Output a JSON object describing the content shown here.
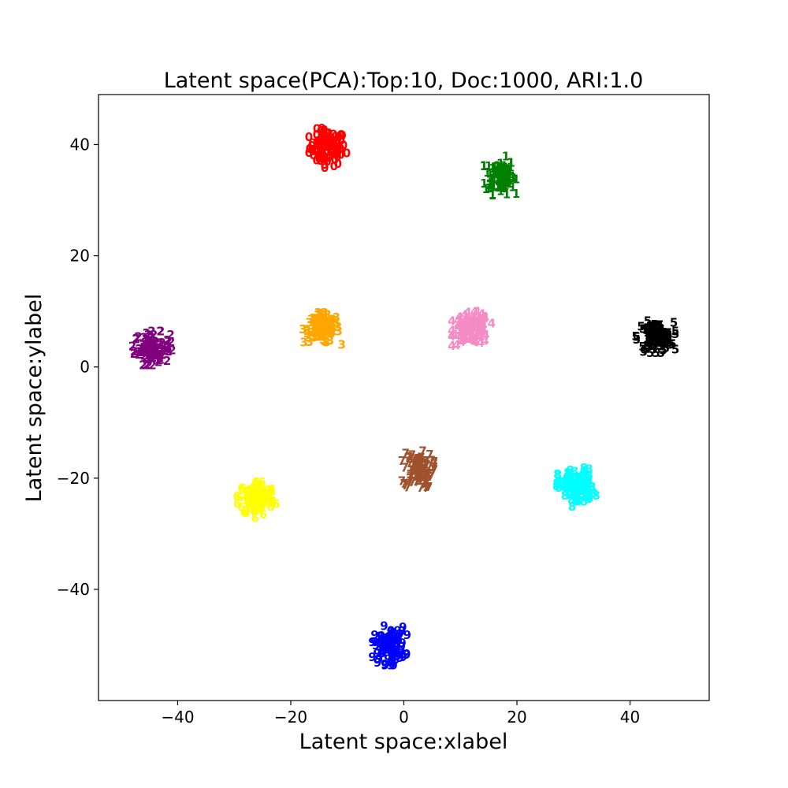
{
  "chart_data": {
    "type": "scatter",
    "title": "Latent space(PCA):Top:10, Doc:1000, ARI:1.0",
    "xlabel": "Latent space:xlabel",
    "ylabel": "Latent space:ylabel",
    "xlim": [
      -54,
      54
    ],
    "ylim": [
      -60,
      49
    ],
    "xticks": [
      -40,
      -20,
      0,
      20,
      40
    ],
    "yticks": [
      -40,
      -20,
      0,
      20,
      40
    ],
    "xtick_labels": [
      "−40",
      "−20",
      "0",
      "20",
      "40"
    ],
    "ytick_labels": [
      "−40",
      "−20",
      "0",
      "20",
      "40"
    ],
    "grid": false,
    "legend": "none",
    "marker": "text (topic index)",
    "points_per_cluster": 100,
    "clusters": [
      {
        "label": "0",
        "color": "#ff0000",
        "center": [
          -13.5,
          39.5
        ],
        "spread": [
          1.6,
          1.6
        ]
      },
      {
        "label": "1",
        "color": "#008000",
        "center": [
          17.0,
          34.5
        ],
        "spread": [
          1.3,
          1.6
        ]
      },
      {
        "label": "2",
        "color": "#800080",
        "center": [
          -44.5,
          3.5
        ],
        "spread": [
          1.6,
          1.4
        ]
      },
      {
        "label": "3",
        "color": "#ffa500",
        "center": [
          -14.5,
          7.0
        ],
        "spread": [
          1.6,
          1.3
        ]
      },
      {
        "label": "4",
        "color": "#f58bc5",
        "center": [
          12.0,
          7.0
        ],
        "spread": [
          1.6,
          1.4
        ]
      },
      {
        "label": "5",
        "color": "#000000",
        "center": [
          44.5,
          5.5
        ],
        "spread": [
          1.6,
          1.3
        ]
      },
      {
        "label": "6",
        "color": "#ffff00",
        "center": [
          -26.0,
          -23.5
        ],
        "spread": [
          1.6,
          1.6
        ]
      },
      {
        "label": "7",
        "color": "#a0522d",
        "center": [
          2.5,
          -18.5
        ],
        "spread": [
          1.3,
          1.6
        ]
      },
      {
        "label": "8",
        "color": "#00ffff",
        "center": [
          30.5,
          -21.5
        ],
        "spread": [
          1.6,
          1.6
        ]
      },
      {
        "label": "9",
        "color": "#0000ff",
        "center": [
          -2.5,
          -50.0
        ],
        "spread": [
          1.4,
          1.6
        ]
      }
    ]
  }
}
